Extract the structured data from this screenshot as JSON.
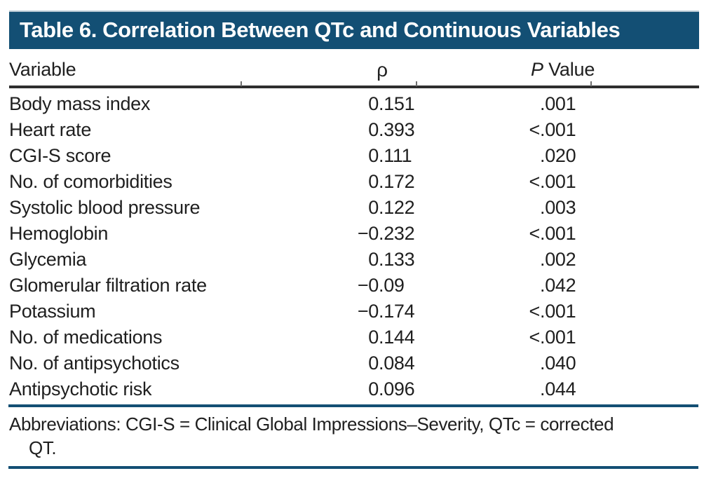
{
  "title_bar": {
    "text": "Table 6. Correlation Between QTc and Continuous Variables",
    "background_color": "#134f74",
    "text_color": "#ffffff"
  },
  "table": {
    "headers": {
      "variable": "Variable",
      "rho": "ρ",
      "p_italic": "P",
      "p_rest": " Value"
    },
    "rows": [
      {
        "variable": "Body mass index",
        "rho": "0.151",
        "p": ".001"
      },
      {
        "variable": "Heart rate",
        "rho": "0.393",
        "p": "<.001"
      },
      {
        "variable": "CGI-S score",
        "rho": "0.111",
        "p": ".020"
      },
      {
        "variable": "No. of comorbidities",
        "rho": "0.172",
        "p": "<.001"
      },
      {
        "variable": "Systolic blood pressure",
        "rho": "0.122",
        "p": ".003"
      },
      {
        "variable": "Hemoglobin",
        "rho": "−0.232",
        "p": "<.001"
      },
      {
        "variable": "Glycemia",
        "rho": "0.133",
        "p": ".002"
      },
      {
        "variable": "Glomerular filtration rate",
        "rho": "−0.09",
        "p": ".042"
      },
      {
        "variable": "Potassium",
        "rho": "−0.174",
        "p": "<.001"
      },
      {
        "variable": "No. of medications",
        "rho": "0.144",
        "p": "<.001"
      },
      {
        "variable": "No. of antipsychotics",
        "rho": "0.084",
        "p": ".040"
      },
      {
        "variable": "Antipsychotic risk",
        "rho": "0.096",
        "p": ".044"
      }
    ]
  },
  "footnote": {
    "line1": "Abbreviations: CGI-S = Clinical Global Impressions–Severity, QTc = corrected",
    "line2": "QT."
  },
  "colors": {
    "accent_blue": "#134f74",
    "rule_black": "#2e2e2e",
    "text": "#1f1f1f"
  }
}
